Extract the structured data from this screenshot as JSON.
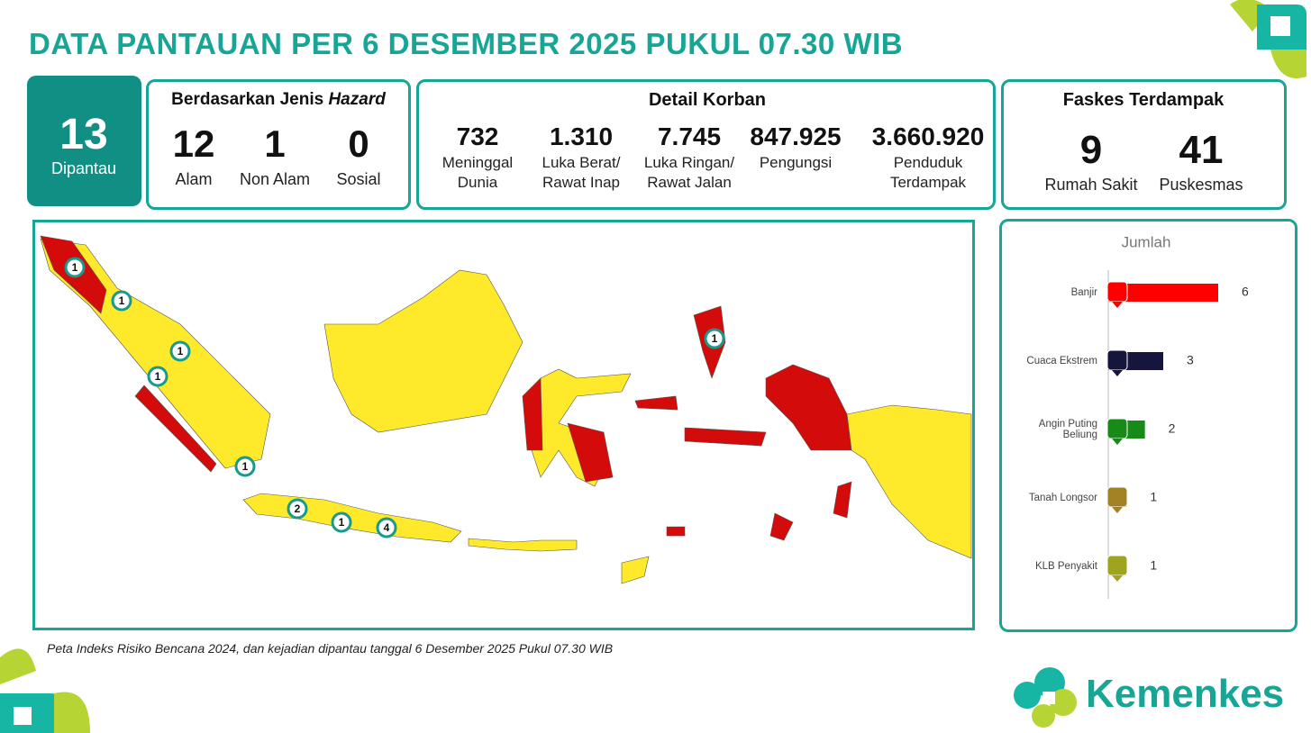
{
  "header": {
    "title": "DATA PANTAUAN PER 6 DESEMBER 2025 PUKUL 07.30 WIB"
  },
  "monitored": {
    "value": "13",
    "label": "Dipantau"
  },
  "hazard": {
    "title": "Berdasarkan Jenis",
    "title_emphasis": "Hazard",
    "items": [
      {
        "value": "12",
        "label": "Alam"
      },
      {
        "value": "1",
        "label": "Non Alam"
      },
      {
        "value": "0",
        "label": "Sosial"
      }
    ]
  },
  "victims": {
    "title": "Detail Korban",
    "items": [
      {
        "value": "732",
        "label": "Meninggal Dunia"
      },
      {
        "value": "1.310",
        "label": "Luka Berat/ Rawat Inap"
      },
      {
        "value": "7.745",
        "label": "Luka Ringan/ Rawat Jalan"
      },
      {
        "value": "847.925",
        "label": "Pengungsi"
      },
      {
        "value": "3.660.920",
        "label": "Penduduk Terdampak"
      }
    ]
  },
  "facilities": {
    "title": "Faskes Terdampak",
    "items": [
      {
        "value": "9",
        "label": "Rumah Sakit"
      },
      {
        "value": "41",
        "label": "Puskesmas"
      }
    ]
  },
  "map": {
    "markers": [
      "1",
      "1",
      "1",
      "1",
      "1",
      "2",
      "1",
      "4",
      "1"
    ],
    "caption": "Peta Indeks Risiko Bencana 2024, dan kejadian dipantau tanggal 6 Desember 2025 Pukul 07.30  WIB"
  },
  "chart_data": {
    "type": "bar",
    "orientation": "horizontal",
    "title": "Jumlah",
    "categories": [
      "Banjir",
      "Cuaca Ekstrem",
      "Angin Puting Beliung",
      "Tanah Longsor",
      "KLB Penyakit"
    ],
    "values": [
      6,
      3,
      2,
      1,
      1
    ],
    "colors": [
      "#ff0000",
      "#15153d",
      "#178a17",
      "#a38226",
      "#9fa41e"
    ]
  },
  "logo": {
    "text": "Kemenkes"
  }
}
